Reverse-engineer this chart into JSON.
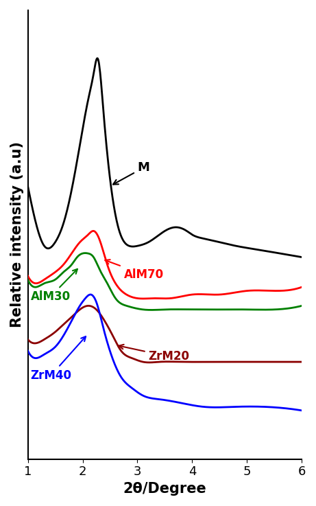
{
  "title": "",
  "xlabel": "2θ/Degree",
  "ylabel": "Relative intensity (a.u)",
  "xlim": [
    1,
    6
  ],
  "ylim": [
    -0.05,
    1.15
  ],
  "background_color": "#ffffff",
  "series": {
    "M": {
      "color": "#000000",
      "label": "M",
      "x": [
        1.0,
        1.15,
        1.3,
        1.5,
        1.65,
        1.8,
        1.95,
        2.1,
        2.2,
        2.28,
        2.38,
        2.5,
        2.65,
        2.85,
        3.0,
        3.2,
        3.5,
        3.7,
        3.9,
        4.0,
        4.2,
        4.5,
        4.8,
        5.2,
        5.6,
        6.0
      ],
      "y": [
        0.68,
        0.58,
        0.52,
        0.53,
        0.58,
        0.67,
        0.79,
        0.91,
        0.98,
        1.02,
        0.88,
        0.7,
        0.57,
        0.52,
        0.52,
        0.53,
        0.56,
        0.57,
        0.56,
        0.55,
        0.54,
        0.53,
        0.52,
        0.51,
        0.5,
        0.49
      ]
    },
    "AlM70": {
      "color": "#ff0000",
      "label": "AlM70",
      "x": [
        1.0,
        1.15,
        1.3,
        1.5,
        1.65,
        1.8,
        1.95,
        2.1,
        2.2,
        2.3,
        2.45,
        2.6,
        2.8,
        3.0,
        3.3,
        3.6,
        4.0,
        4.5,
        5.0,
        5.5,
        6.0
      ],
      "y": [
        0.44,
        0.42,
        0.43,
        0.45,
        0.47,
        0.5,
        0.53,
        0.55,
        0.56,
        0.54,
        0.47,
        0.42,
        0.39,
        0.38,
        0.38,
        0.38,
        0.39,
        0.39,
        0.4,
        0.4,
        0.41
      ]
    },
    "AlM30": {
      "color": "#008000",
      "label": "AlM30",
      "x": [
        1.0,
        1.15,
        1.3,
        1.5,
        1.65,
        1.8,
        1.9,
        2.0,
        2.1,
        2.2,
        2.3,
        2.45,
        2.6,
        2.8,
        3.1,
        3.5,
        4.0,
        4.5,
        5.0,
        5.5,
        6.0
      ],
      "y": [
        0.43,
        0.41,
        0.42,
        0.43,
        0.45,
        0.47,
        0.49,
        0.5,
        0.5,
        0.49,
        0.46,
        0.42,
        0.38,
        0.36,
        0.35,
        0.35,
        0.35,
        0.35,
        0.35,
        0.35,
        0.36
      ]
    },
    "ZrM20": {
      "color": "#8b0000",
      "label": "ZrM20",
      "x": [
        1.0,
        1.15,
        1.3,
        1.5,
        1.65,
        1.8,
        1.95,
        2.1,
        2.25,
        2.4,
        2.55,
        2.7,
        2.9,
        3.1,
        3.4,
        3.8,
        4.2,
        5.0,
        5.5,
        6.0
      ],
      "y": [
        0.27,
        0.26,
        0.27,
        0.29,
        0.31,
        0.33,
        0.35,
        0.36,
        0.35,
        0.32,
        0.28,
        0.24,
        0.22,
        0.21,
        0.21,
        0.21,
        0.21,
        0.21,
        0.21,
        0.21
      ]
    },
    "ZrM40": {
      "color": "#0000ff",
      "label": "ZrM40",
      "x": [
        1.0,
        1.15,
        1.3,
        1.5,
        1.65,
        1.8,
        1.95,
        2.05,
        2.15,
        2.25,
        2.38,
        2.52,
        2.7,
        2.9,
        3.1,
        3.4,
        3.8,
        4.2,
        4.8,
        5.3,
        6.0
      ],
      "y": [
        0.24,
        0.22,
        0.23,
        0.25,
        0.28,
        0.32,
        0.36,
        0.38,
        0.39,
        0.37,
        0.3,
        0.23,
        0.17,
        0.14,
        0.12,
        0.11,
        0.1,
        0.09,
        0.09,
        0.09,
        0.08
      ]
    }
  },
  "tick_fontsize": 13,
  "label_fontsize": 15,
  "linewidth": 2.0
}
